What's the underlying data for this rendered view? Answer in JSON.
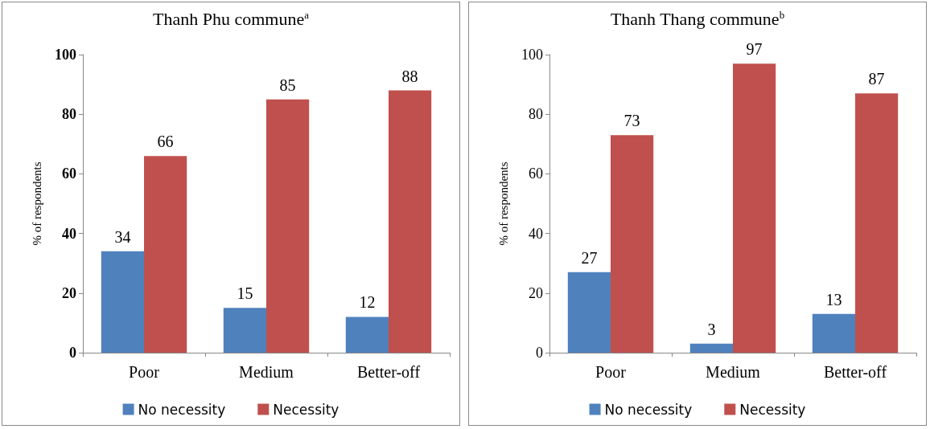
{
  "chart_data": [
    {
      "type": "bar",
      "title": "Thanh Phu commune$^{a}$",
      "ylabel": "% of respondents",
      "categories": [
        "Poor",
        "Medium",
        "Better-off"
      ],
      "series": [
        {
          "name": "No necessity",
          "color": "#4f81bd",
          "values": [
            34,
            15,
            12
          ]
        },
        {
          "name": "Necessity",
          "color": "#c0504d",
          "values": [
            66,
            85,
            88
          ]
        }
      ],
      "ylim": [
        0,
        100
      ],
      "yticks": [
        0,
        20,
        40,
        60,
        80,
        100
      ],
      "data_labels": true,
      "grid": false,
      "legend": "bottom"
    },
    {
      "type": "bar",
      "title": "Thanh Thang commune$^{b}$",
      "ylabel": "% of respondents",
      "categories": [
        "Poor",
        "Medium",
        "Better-off"
      ],
      "series": [
        {
          "name": "No necessity",
          "color": "#4f81bd",
          "values": [
            27,
            3,
            13
          ]
        },
        {
          "name": "Necessity",
          "color": "#c0504d",
          "values": [
            73,
            97,
            87
          ]
        }
      ],
      "ylim": [
        0,
        100
      ],
      "yticks": [
        0,
        20,
        40,
        60,
        80,
        100
      ],
      "data_labels": true,
      "grid": false,
      "legend": "bottom"
    }
  ]
}
